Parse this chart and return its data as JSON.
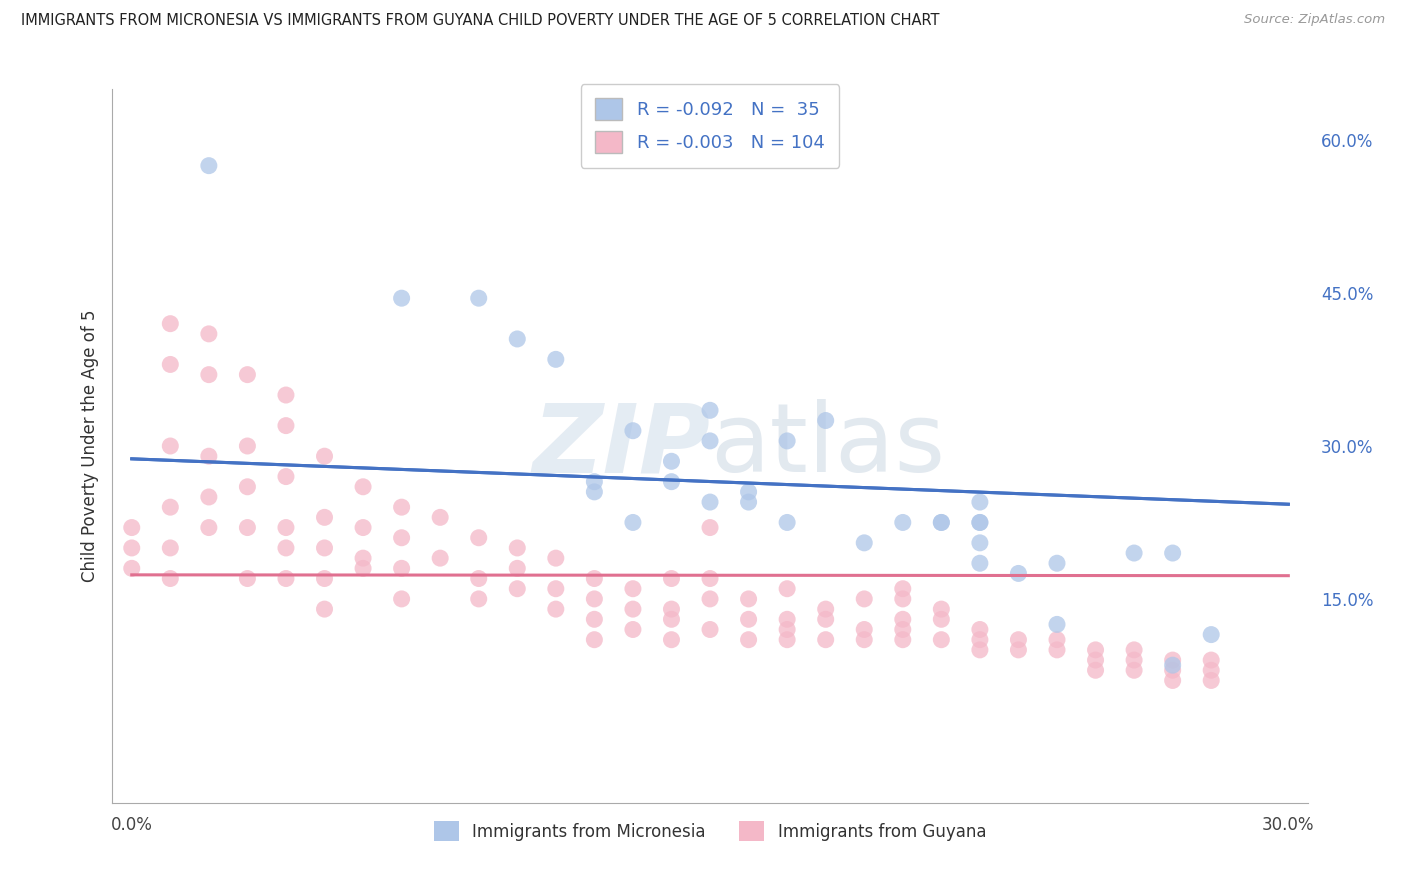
{
  "title": "IMMIGRANTS FROM MICRONESIA VS IMMIGRANTS FROM GUYANA CHILD POVERTY UNDER THE AGE OF 5 CORRELATION CHART",
  "source": "Source: ZipAtlas.com",
  "ylabel": "Child Poverty Under the Age of 5",
  "xlim": [
    0.0,
    0.3
  ],
  "ylim": [
    -0.05,
    0.65
  ],
  "grid_color": "#c8c8c8",
  "background_color": "#ffffff",
  "micronesia_color": "#aec6e8",
  "guyana_color": "#f4b8c8",
  "micronesia_line_color": "#4472c4",
  "guyana_line_color": "#e07090",
  "micronesia_R": -0.092,
  "micronesia_N": 35,
  "guyana_R": -0.003,
  "guyana_N": 104,
  "legend_label_micronesia": "Immigrants from Micronesia",
  "legend_label_guyana": "Immigrants from Guyana",
  "right_tick_color": "#4472c4",
  "mic_line_start_y": 0.265,
  "mic_line_end_y": 0.195,
  "guy_line_y": 0.218,
  "guy_line_slope": -0.003,
  "mic_scatter_x": [
    0.02,
    0.07,
    0.09,
    0.1,
    0.11,
    0.12,
    0.12,
    0.13,
    0.13,
    0.14,
    0.14,
    0.15,
    0.15,
    0.15,
    0.16,
    0.17,
    0.17,
    0.18,
    0.19,
    0.2,
    0.21,
    0.21,
    0.22,
    0.22,
    0.22,
    0.22,
    0.23,
    0.24,
    0.24,
    0.26,
    0.27,
    0.27,
    0.28,
    0.22,
    0.16
  ],
  "mic_scatter_y": [
    0.575,
    0.445,
    0.445,
    0.405,
    0.385,
    0.255,
    0.265,
    0.315,
    0.225,
    0.265,
    0.285,
    0.245,
    0.305,
    0.335,
    0.245,
    0.305,
    0.225,
    0.325,
    0.205,
    0.225,
    0.225,
    0.225,
    0.225,
    0.225,
    0.245,
    0.205,
    0.175,
    0.185,
    0.125,
    0.195,
    0.195,
    0.085,
    0.115,
    0.185,
    0.255
  ],
  "guy_scatter_x": [
    0.01,
    0.01,
    0.01,
    0.02,
    0.02,
    0.02,
    0.02,
    0.02,
    0.03,
    0.03,
    0.03,
    0.03,
    0.03,
    0.04,
    0.04,
    0.04,
    0.04,
    0.04,
    0.05,
    0.05,
    0.05,
    0.05,
    0.06,
    0.06,
    0.06,
    0.07,
    0.07,
    0.07,
    0.07,
    0.08,
    0.08,
    0.09,
    0.09,
    0.09,
    0.1,
    0.1,
    0.1,
    0.11,
    0.11,
    0.11,
    0.12,
    0.12,
    0.12,
    0.12,
    0.13,
    0.13,
    0.13,
    0.14,
    0.14,
    0.14,
    0.14,
    0.15,
    0.15,
    0.15,
    0.16,
    0.16,
    0.16,
    0.17,
    0.17,
    0.17,
    0.18,
    0.18,
    0.18,
    0.19,
    0.19,
    0.19,
    0.2,
    0.2,
    0.2,
    0.21,
    0.21,
    0.22,
    0.22,
    0.22,
    0.23,
    0.23,
    0.24,
    0.24,
    0.25,
    0.25,
    0.25,
    0.26,
    0.26,
    0.26,
    0.27,
    0.27,
    0.27,
    0.28,
    0.28,
    0.28,
    0.0,
    0.0,
    0.0,
    0.01,
    0.01,
    0.01,
    0.04,
    0.05,
    0.17,
    0.06,
    0.15,
    0.2,
    0.2,
    0.21
  ],
  "guy_scatter_y": [
    0.42,
    0.38,
    0.3,
    0.41,
    0.37,
    0.29,
    0.25,
    0.22,
    0.37,
    0.3,
    0.26,
    0.22,
    0.17,
    0.32,
    0.27,
    0.22,
    0.2,
    0.17,
    0.29,
    0.23,
    0.2,
    0.17,
    0.26,
    0.22,
    0.18,
    0.24,
    0.21,
    0.18,
    0.15,
    0.23,
    0.19,
    0.21,
    0.17,
    0.15,
    0.2,
    0.18,
    0.16,
    0.19,
    0.16,
    0.14,
    0.17,
    0.15,
    0.13,
    0.11,
    0.16,
    0.14,
    0.12,
    0.17,
    0.14,
    0.13,
    0.11,
    0.17,
    0.15,
    0.12,
    0.15,
    0.13,
    0.11,
    0.16,
    0.13,
    0.11,
    0.14,
    0.13,
    0.11,
    0.15,
    0.12,
    0.11,
    0.13,
    0.12,
    0.11,
    0.13,
    0.11,
    0.12,
    0.11,
    0.1,
    0.11,
    0.1,
    0.11,
    0.1,
    0.1,
    0.09,
    0.08,
    0.1,
    0.09,
    0.08,
    0.09,
    0.08,
    0.07,
    0.09,
    0.08,
    0.07,
    0.22,
    0.2,
    0.18,
    0.24,
    0.2,
    0.17,
    0.35,
    0.14,
    0.12,
    0.19,
    0.22,
    0.16,
    0.15,
    0.14
  ]
}
